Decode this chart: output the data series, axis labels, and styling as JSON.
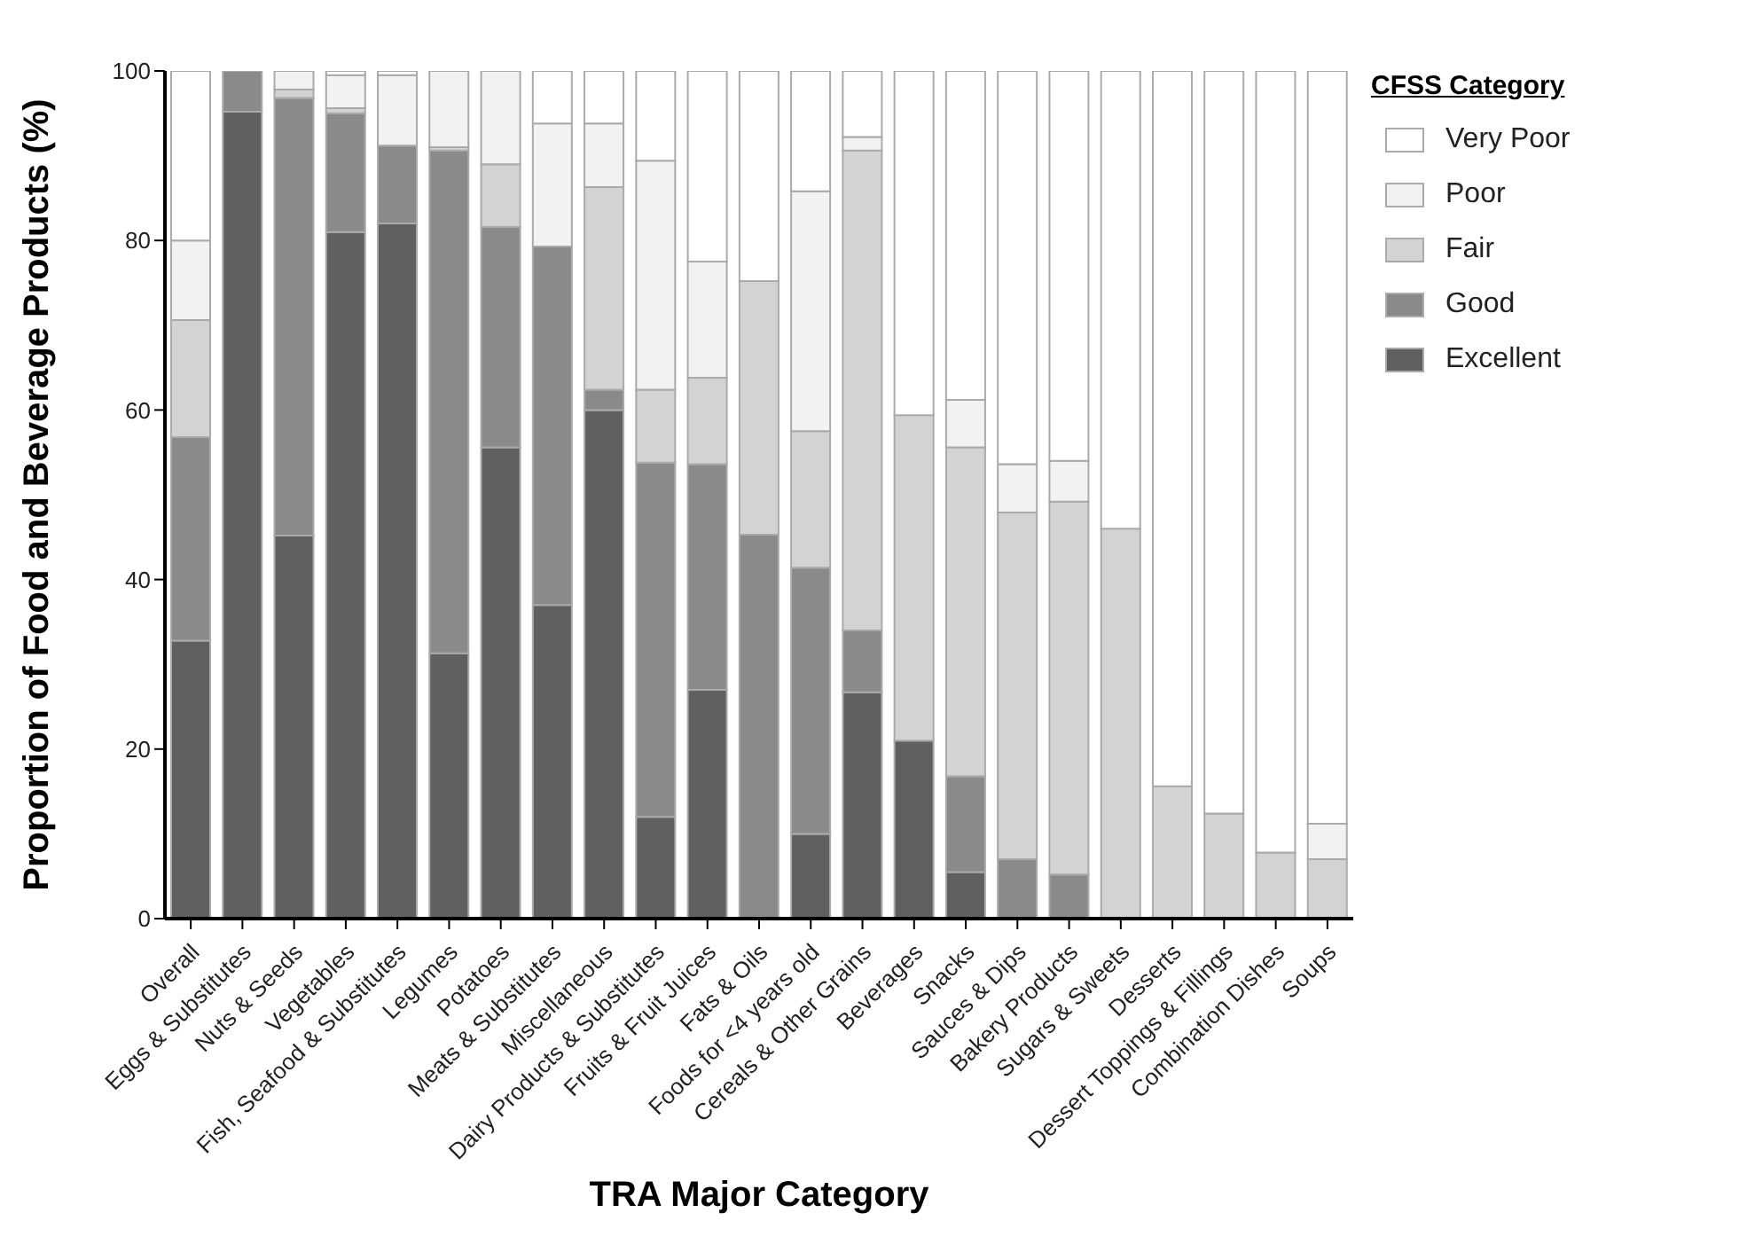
{
  "chart_data": {
    "type": "bar",
    "stacked": true,
    "xlabel": "TRA Major Category",
    "ylabel": "Proportion of Food and Beverage Products (%)",
    "legend_title": "CFSS Category",
    "categories": [
      "Overall",
      "Eggs & Substitutes",
      "Nuts & Seeds",
      "Vegetables",
      "Fish, Seafood & Substitutes",
      "Legumes",
      "Potatoes",
      "Meats & Substitutes",
      "Miscellaneous",
      "Dairy Products & Substitutes",
      "Fruits & Fruit Juices",
      "Fats & Oils",
      "Foods for <4 years old",
      "Cereals & Other Grains",
      "Beverages",
      "Snacks",
      "Sauces & Dips",
      "Bakery Products",
      "Sugars & Sweets",
      "Desserts",
      "Dessert Toppings & Fillings",
      "Combination Dishes",
      "Soups"
    ],
    "series": [
      {
        "name": "Excellent",
        "color": "#606060",
        "values": [
          32.8,
          95.2,
          45.2,
          81,
          82,
          31.3,
          55.6,
          37,
          60,
          12,
          27,
          0,
          10,
          26.7,
          21,
          5.5,
          0,
          0,
          0,
          0,
          0,
          0,
          0
        ]
      },
      {
        "name": "Good",
        "color": "#8a8a8a",
        "values": [
          24,
          4.8,
          51.6,
          14,
          9.2,
          59.3,
          26,
          42.3,
          2.4,
          41.8,
          26.6,
          45.3,
          31.4,
          7.3,
          0,
          11.3,
          7,
          5.2,
          0,
          0,
          0,
          0,
          0
        ]
      },
      {
        "name": "Fair",
        "color": "#d3d3d3",
        "values": [
          13.8,
          0,
          1,
          0.6,
          0,
          0.4,
          7.4,
          0,
          23.9,
          8.6,
          10.2,
          29.9,
          16.1,
          56.6,
          38.4,
          38.8,
          40.9,
          44,
          46,
          15.6,
          12.4,
          7.8,
          7
        ]
      },
      {
        "name": "Poor",
        "color": "#f2f2f2",
        "values": [
          9.4,
          0,
          2.2,
          3.9,
          8.3,
          9,
          11,
          14.5,
          7.5,
          27,
          13.7,
          0,
          28.3,
          1.6,
          0,
          5.6,
          5.7,
          4.8,
          0,
          0,
          0,
          0,
          4.2
        ]
      },
      {
        "name": "Very Poor",
        "color": "#ffffff",
        "values": [
          20,
          0,
          0,
          0.5,
          0.5,
          0,
          0,
          6.2,
          6.2,
          10.6,
          22.5,
          24.8,
          14.2,
          7.8,
          40.6,
          38.8,
          46.4,
          46,
          54,
          84.4,
          87.6,
          92.2,
          88.8
        ]
      }
    ],
    "ylim": [
      0,
      100
    ],
    "yticks": [
      0,
      20,
      40,
      60,
      80,
      100
    ],
    "grid": false,
    "legend": "top right"
  }
}
